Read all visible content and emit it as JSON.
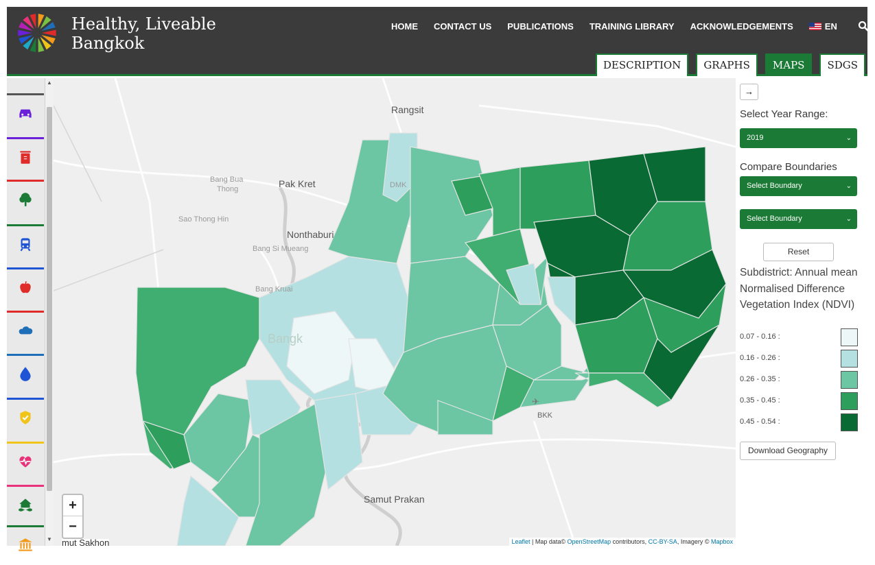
{
  "header": {
    "brand_line1": "Healthy, Liveable",
    "brand_line2": "Bangkok",
    "nav": [
      "HOME",
      "CONTACT US",
      "PUBLICATIONS",
      "TRAINING LIBRARY",
      "ACKNOWLEDGEMENTS"
    ],
    "language": "EN",
    "tabs": [
      {
        "label": "DESCRIPTION",
        "active": false
      },
      {
        "label": "GRAPHS",
        "active": false
      },
      {
        "label": "MAPS",
        "active": true
      },
      {
        "label": "SDGS",
        "active": false
      }
    ]
  },
  "rail": {
    "items": [
      {
        "icon": "car-icon",
        "color": "#6a1fd8"
      },
      {
        "icon": "recycle-bin-icon",
        "color": "#e02b2b"
      },
      {
        "icon": "tree-icon",
        "color": "#1b7a36"
      },
      {
        "icon": "train-icon",
        "color": "#1f55d4"
      },
      {
        "icon": "apple-icon",
        "color": "#e02b2b"
      },
      {
        "icon": "cloud-icon",
        "color": "#1f6fb8"
      },
      {
        "icon": "water-drop-icon",
        "color": "#1f55d4"
      },
      {
        "icon": "shield-check-icon",
        "color": "#f0c419"
      },
      {
        "icon": "heartbeat-icon",
        "color": "#e8337a"
      },
      {
        "icon": "house-flood-icon",
        "color": "#1b7a36"
      },
      {
        "icon": "museum-icon",
        "color": "#f29a1a"
      }
    ]
  },
  "map": {
    "places": {
      "rangsit": "Rangsit",
      "bang_bua_thong_1": "Bang Bua",
      "bang_bua_thong_2": "Thong",
      "pak_kret": "Pak Kret",
      "sao_thong_hin": "Sao Thong Hin",
      "nonthaburi": "Nonthaburi",
      "bang_si_mueang": "Bang Si Mueang",
      "bang_kruai": "Bang Kruai",
      "bangkok_faded": "Bangk",
      "dmk": "DMK",
      "bkk": "BKK",
      "samut_prakan": "Samut Prakan",
      "samut_sakhon": "mut Sakhon"
    },
    "zoom_in": "+",
    "zoom_out": "−",
    "attribution": {
      "leaflet": "Leaflet",
      "sep": " | Map data© ",
      "osm": "OpenStreetMap",
      "contrib": " contributors, ",
      "license": "CC-BY-SA",
      "imagery": ", Imagery © ",
      "mapbox": "Mapbox"
    }
  },
  "panel": {
    "arrow": "→",
    "year_label": "Select Year Range:",
    "year_value": "2019",
    "compare_label": "Compare Boundaries",
    "boundary_1": "Select Boundary",
    "boundary_2": "Select Boundary",
    "reset": "Reset",
    "title": "Subdistrict: Annual mean Normalised Difference Vegetation Index (NDVI)",
    "legend": [
      {
        "range": "0.07 - 0.16 :",
        "color": "#eef7f7"
      },
      {
        "range": "0.16 - 0.26 :",
        "color": "#b5e0e2"
      },
      {
        "range": "0.26 - 0.35 :",
        "color": "#6cc6a3"
      },
      {
        "range": "0.35 - 0.45 :",
        "color": "#2e9e5d"
      },
      {
        "range": "0.45 - 0.54 :",
        "color": "#0a6a33"
      }
    ],
    "download": "Download Geography"
  }
}
